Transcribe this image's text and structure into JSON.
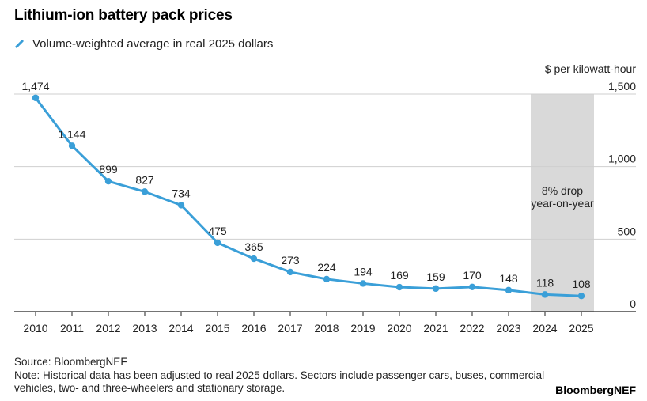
{
  "header": {
    "title": "Lithium-ion battery pack prices",
    "legend_label": "Volume-weighted average in real 2025 dollars",
    "unit_label": "$ per kilowatt-hour"
  },
  "footer": {
    "source": "Source: BloombergNEF",
    "note": "Note: Historical data has been adjusted to real 2025 dollars. Sectors include passenger cars, buses, commercial vehicles, two- and three-wheelers and stationary storage.",
    "brand": "BloombergNEF"
  },
  "colors": {
    "line": "#3a9fd8",
    "highlight": "#d9d9d9",
    "grid": "#cfcfcf",
    "axis": "#222222"
  },
  "chart_data": {
    "type": "line",
    "title": "Lithium-ion battery pack prices",
    "xlabel": "",
    "ylabel": "$ per kilowatt-hour",
    "x": [
      "2010",
      "2011",
      "2012",
      "2013",
      "2014",
      "2015",
      "2016",
      "2017",
      "2018",
      "2019",
      "2020",
      "2021",
      "2022",
      "2023",
      "2024",
      "2025"
    ],
    "series": [
      {
        "name": "Volume-weighted average in real 2025 dollars",
        "values": [
          1474,
          1144,
          899,
          827,
          734,
          475,
          365,
          273,
          224,
          194,
          169,
          159,
          170,
          148,
          118,
          108
        ]
      }
    ],
    "value_labels": [
      "1,474",
      "1,144",
      "899",
      "827",
      "734",
      "475",
      "365",
      "273",
      "224",
      "194",
      "169",
      "159",
      "170",
      "148",
      "118",
      "108"
    ],
    "ylim": [
      0,
      1500
    ],
    "yticks": [
      0,
      500,
      1000,
      1500
    ],
    "ytick_labels": [
      "0",
      "500",
      "1,000",
      "1,500"
    ],
    "y_axis_position": "right",
    "grid": true,
    "highlight": {
      "from": "2024",
      "to": "2025",
      "annotation_line1": "8% drop",
      "annotation_line2": "year-on-year"
    }
  }
}
